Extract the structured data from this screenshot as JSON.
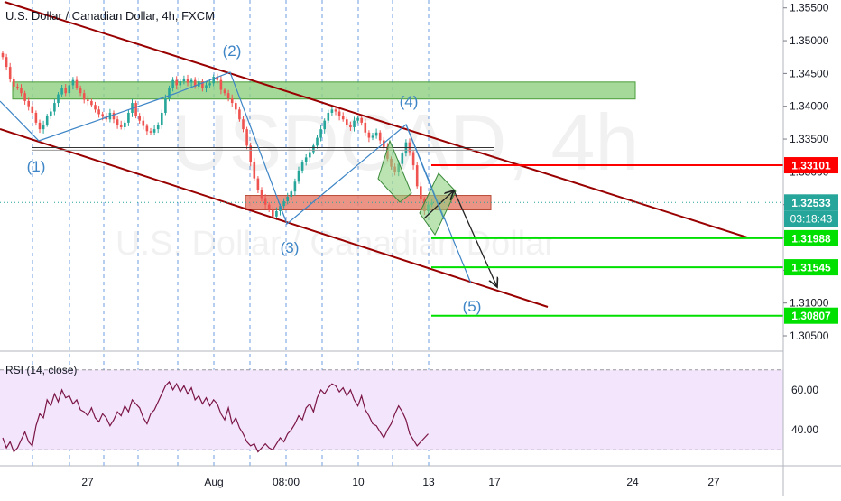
{
  "symbol_title": "U.S. Dollar / Canadian Dollar, 4h, FXCM",
  "watermark": {
    "big": "USDCAD, 4h",
    "sub": "U.S. Dollar / Canadian Dollar"
  },
  "countdown": "03:18:43",
  "rsi_label": "RSI (14, close)",
  "colors": {
    "up": "#26a69a",
    "down": "#ef5350",
    "channel": "#990000",
    "wave": "#3d85c6",
    "support": "#00e000",
    "resistance_line": "#ff0000",
    "green_zone": "#8fd07f",
    "red_zone": "#e8806e",
    "rsi_line": "#7b1546",
    "rsi_band": "#f3e5fb"
  },
  "chart_data": [
    {
      "type": "candlestick",
      "title": "U.S. Dollar / Canadian Dollar, 4h, FXCM",
      "y_axis": {
        "ticks": [
          "1.35500",
          "1.35000",
          "1.34500",
          "1.34000",
          "1.33500",
          "1.33000",
          "1.32500",
          "1.32000",
          "1.31500",
          "1.31000",
          "1.30500"
        ],
        "range": [
          1.3028,
          1.3562
        ]
      },
      "x_axis": {
        "ticks": [
          "27",
          "Aug",
          "08:00",
          "10",
          "13",
          "17",
          "24",
          "27"
        ]
      },
      "price_labels": [
        {
          "value": "1.33101",
          "color": "#ff0000"
        },
        {
          "value": "1.32533",
          "color": "#26a69a"
        },
        {
          "value": "1.31988",
          "color": "#00e000"
        },
        {
          "value": "1.31545",
          "color": "#00e000"
        },
        {
          "value": "1.30807",
          "color": "#00e000"
        }
      ],
      "wave_labels": [
        "(1)",
        "(2)",
        "(3)",
        "(4)",
        "(5)"
      ],
      "candles_close": [
        1.3475,
        1.346,
        1.3442,
        1.343,
        1.3428,
        1.342,
        1.3408,
        1.34,
        1.339,
        1.3375,
        1.3365,
        1.3372,
        1.3385,
        1.3392,
        1.3405,
        1.3418,
        1.3428,
        1.342,
        1.3432,
        1.344,
        1.3428,
        1.342,
        1.341,
        1.3408,
        1.3402,
        1.3395,
        1.3388,
        1.3385,
        1.338,
        1.339,
        1.338,
        1.3372,
        1.3368,
        1.3375,
        1.339,
        1.3405,
        1.3385,
        1.3378,
        1.337,
        1.3362,
        1.336,
        1.3365,
        1.3372,
        1.339,
        1.3412,
        1.3428,
        1.344,
        1.3432,
        1.3438,
        1.3442,
        1.3436,
        1.344,
        1.343,
        1.3438,
        1.3428,
        1.3432,
        1.3435,
        1.3445,
        1.344,
        1.3425,
        1.342,
        1.3412,
        1.3405,
        1.3395,
        1.338,
        1.3365,
        1.334,
        1.3315,
        1.329,
        1.3272,
        1.326,
        1.325,
        1.3242,
        1.3232,
        1.324,
        1.3248,
        1.3255,
        1.3262,
        1.327,
        1.3285,
        1.3302,
        1.3315,
        1.3322,
        1.333,
        1.334,
        1.3352,
        1.3365,
        1.3378,
        1.339,
        1.3395,
        1.3392,
        1.3385,
        1.338,
        1.3372,
        1.3368,
        1.3378,
        1.3382,
        1.3375,
        1.336,
        1.3352,
        1.3355,
        1.336,
        1.3348,
        1.3338,
        1.332,
        1.3308,
        1.33,
        1.3312,
        1.3328,
        1.3345,
        1.333,
        1.331,
        1.3278,
        1.3258,
        1.324,
        1.325,
        1.3253
      ],
      "horizontal_levels": [
        1.33101,
        1.31988,
        1.31545,
        1.30807
      ]
    },
    {
      "type": "line",
      "title": "RSI (14, close)",
      "y_axis": {
        "ticks": [
          "60.00",
          "40.00"
        ],
        "band": [
          30,
          70
        ],
        "range": [
          22,
          78
        ]
      },
      "values": [
        36,
        31,
        34,
        29,
        31,
        35,
        39,
        34,
        32,
        42,
        48,
        46,
        55,
        52,
        58,
        54,
        60,
        56,
        57,
        53,
        55,
        50,
        49,
        47,
        51,
        46,
        44,
        48,
        46,
        42,
        45,
        49,
        47,
        52,
        49,
        55,
        53,
        51,
        46,
        43,
        48,
        50,
        54,
        58,
        62,
        64,
        60,
        63,
        59,
        62,
        58,
        61,
        55,
        57,
        53,
        56,
        52,
        55,
        53,
        48,
        45,
        51,
        43,
        46,
        41,
        38,
        34,
        32,
        33,
        29,
        31,
        33,
        31,
        30,
        33,
        36,
        34,
        38,
        40,
        43,
        47,
        45,
        51,
        53,
        49,
        56,
        60,
        58,
        61,
        63,
        62,
        59,
        61,
        57,
        60,
        55,
        52,
        57,
        50,
        47,
        43,
        42,
        39,
        36,
        40,
        43,
        48,
        52,
        49,
        45,
        38,
        35,
        32,
        34,
        36,
        38
      ]
    }
  ]
}
